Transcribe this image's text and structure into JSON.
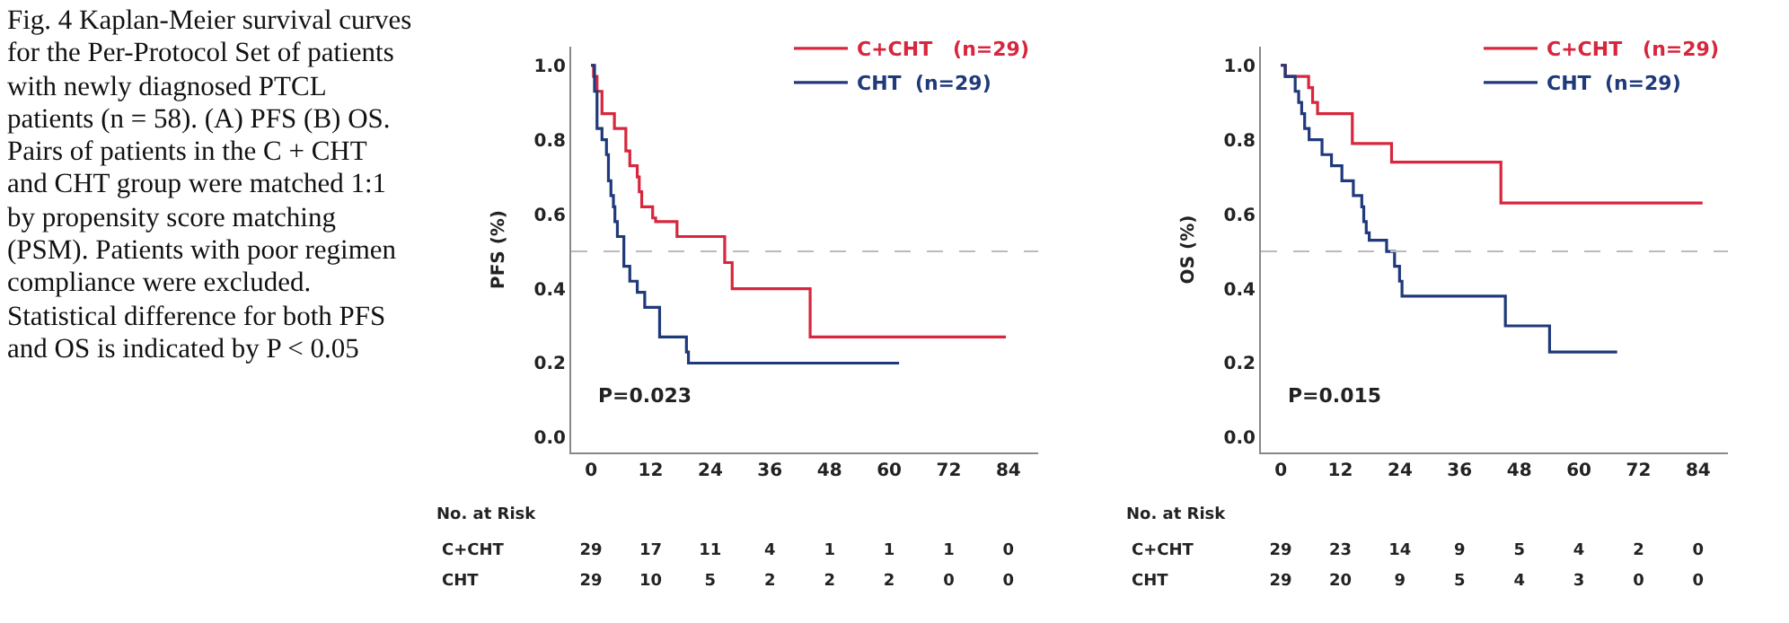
{
  "chart_data": [
    {
      "type": "other",
      "annotations": [
        "Fig. 4 Kaplan-Meier survival curves for the Per-Protocol Set of patients with newly diagnosed PTCL patients (n = 58). (A) PFS (B) OS. Pairs of patients in the C + CHT and CHT group were matched 1:1 by propensity score matching (PSM). Patients with poor regimen compliance were excluded. Statistical difference for both PFS and OS is indicated by P < 0.05"
      ]
    },
    {
      "type": "step",
      "ylabel": "PFS (%)",
      "xlim": [
        -4,
        90
      ],
      "ylim": [
        -0.04,
        1.05
      ],
      "xticks": [
        0,
        12,
        24,
        36,
        48,
        60,
        72,
        84
      ],
      "yticks": [
        {
          "value": 0,
          "label": "0.0"
        },
        {
          "value": 0.2,
          "label": "0.2"
        },
        {
          "value": 0.4,
          "label": "0.4"
        },
        {
          "value": 0.6,
          "label": "0.6"
        },
        {
          "value": 0.8,
          "label": "0.8"
        },
        {
          "value": 1,
          "label": "1.0"
        }
      ],
      "legend": "top right",
      "grid": false,
      "series": [
        {
          "name": "C+CHT   (n=29)",
          "color": "#d7263d",
          "x": [
            0,
            0.5,
            1.2,
            2.2,
            4.7,
            7,
            7.8,
            9.3,
            9.7,
            10.2,
            12.4,
            13,
            17.3,
            26.9,
            28.4,
            44.1,
            83.5
          ],
          "values": [
            1,
            0.97,
            0.93,
            0.87,
            0.83,
            0.77,
            0.73,
            0.7,
            0.66,
            0.62,
            0.59,
            0.58,
            0.54,
            0.47,
            0.4,
            0.27,
            0.27
          ]
        },
        {
          "name": "CHT  (n=29)",
          "color": "#1f3a7a",
          "x": [
            0,
            0.7,
            1.2,
            2.2,
            3.1,
            3.5,
            4,
            4.5,
            4.8,
            5.3,
            6.6,
            7.8,
            9.3,
            10.8,
            13.8,
            19.2,
            19.6,
            62
          ],
          "values": [
            1,
            0.93,
            0.83,
            0.8,
            0.76,
            0.69,
            0.65,
            0.62,
            0.58,
            0.54,
            0.46,
            0.42,
            0.39,
            0.35,
            0.27,
            0.23,
            0.2,
            0.2
          ]
        }
      ],
      "ref_lines": [
        {
          "axis": "y",
          "value": 0.5,
          "color": "#bbbbbb",
          "line_style": "dashed"
        }
      ],
      "annotations": [
        "P=0.023",
        "No. at Risk",
        "C+CHT",
        "29 17 11 4 1 1 1 0",
        "CHT",
        "29 10 5 2 2 2 0 0"
      ]
    },
    {
      "type": "step",
      "ylabel": "OS (%)",
      "xlim": [
        -4,
        90
      ],
      "ylim": [
        -0.04,
        1.05
      ],
      "xticks": [
        0,
        12,
        24,
        36,
        48,
        60,
        72,
        84
      ],
      "yticks": [
        {
          "value": 0,
          "label": "0.0"
        },
        {
          "value": 0.2,
          "label": "0.2"
        },
        {
          "value": 0.4,
          "label": "0.4"
        },
        {
          "value": 0.6,
          "label": "0.6"
        },
        {
          "value": 0.8,
          "label": "0.8"
        },
        {
          "value": 1,
          "label": "1.0"
        }
      ],
      "legend": "top right",
      "grid": false,
      "series": [
        {
          "name": "C+CHT   (n=29)",
          "color": "#d7263d",
          "x": [
            0,
            0.9,
            5.6,
            6.4,
            7.4,
            14.4,
            22.3,
            44.3,
            84.9
          ],
          "values": [
            1,
            0.97,
            0.94,
            0.9,
            0.87,
            0.79,
            0.74,
            0.63,
            0.63
          ]
        },
        {
          "name": "CHT  (n=29)",
          "color": "#1f3a7a",
          "x": [
            0,
            0.9,
            2.9,
            3.6,
            4.2,
            4.8,
            5.7,
            8.3,
            10.2,
            12.3,
            14.6,
            16.3,
            16.7,
            17.2,
            17.8,
            21.3,
            22.9,
            23.9,
            24.4,
            45.2,
            54.1,
            67.7
          ],
          "values": [
            1,
            0.97,
            0.93,
            0.9,
            0.87,
            0.83,
            0.8,
            0.76,
            0.73,
            0.69,
            0.65,
            0.62,
            0.58,
            0.55,
            0.53,
            0.5,
            0.46,
            0.42,
            0.38,
            0.3,
            0.23,
            0.23
          ]
        }
      ],
      "ref_lines": [
        {
          "axis": "y",
          "value": 0.5,
          "color": "#bbbbbb",
          "line_style": "dashed"
        }
      ],
      "annotations": [
        "P=0.015",
        "No. at Risk",
        "C+CHT",
        "29 23 14 9 5 4 2 0",
        "CHT",
        "29 20 9 5 4 3 0 0"
      ]
    }
  ]
}
